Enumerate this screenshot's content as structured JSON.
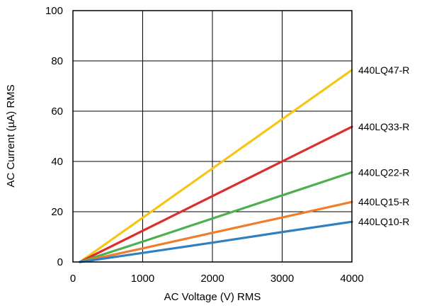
{
  "chart_data": {
    "type": "line",
    "xlabel": "AC Voltage (V) RMS",
    "ylabel": "AC Current (µA) RMS",
    "xlim": [
      0,
      4000
    ],
    "ylim": [
      0,
      100
    ],
    "x_ticks": [
      "0",
      "1000",
      "2000",
      "3000",
      "4000"
    ],
    "y_ticks": [
      "0",
      "20",
      "40",
      "60",
      "80",
      "100"
    ],
    "grid": true,
    "series": [
      {
        "name": "440LQ47-R",
        "color": "#f5c518",
        "points": [
          [
            100,
            0
          ],
          [
            1000,
            17.6
          ],
          [
            2000,
            37.2
          ],
          [
            3000,
            56.8
          ],
          [
            4000,
            76.4
          ]
        ]
      },
      {
        "name": "440LQ33-R",
        "color": "#e02b2b",
        "points": [
          [
            100,
            0
          ],
          [
            1000,
            12.4
          ],
          [
            2000,
            26.2
          ],
          [
            3000,
            40.0
          ],
          [
            4000,
            53.8
          ]
        ]
      },
      {
        "name": "440LQ22-R",
        "color": "#4caf50",
        "points": [
          [
            100,
            0
          ],
          [
            1000,
            8.1
          ],
          [
            2000,
            17.3
          ],
          [
            3000,
            26.5
          ],
          [
            4000,
            35.7
          ]
        ]
      },
      {
        "name": "440LQ15-R",
        "color": "#f07d2e",
        "points": [
          [
            100,
            0
          ],
          [
            1000,
            5.4
          ],
          [
            2000,
            11.6
          ],
          [
            3000,
            17.7
          ],
          [
            4000,
            23.9
          ]
        ]
      },
      {
        "name": "440LQ10-R",
        "color": "#2f7fc1",
        "points": [
          [
            100,
            0
          ],
          [
            1000,
            3.6
          ],
          [
            2000,
            7.7
          ],
          [
            3000,
            11.9
          ],
          [
            4000,
            16.0
          ]
        ]
      }
    ]
  }
}
